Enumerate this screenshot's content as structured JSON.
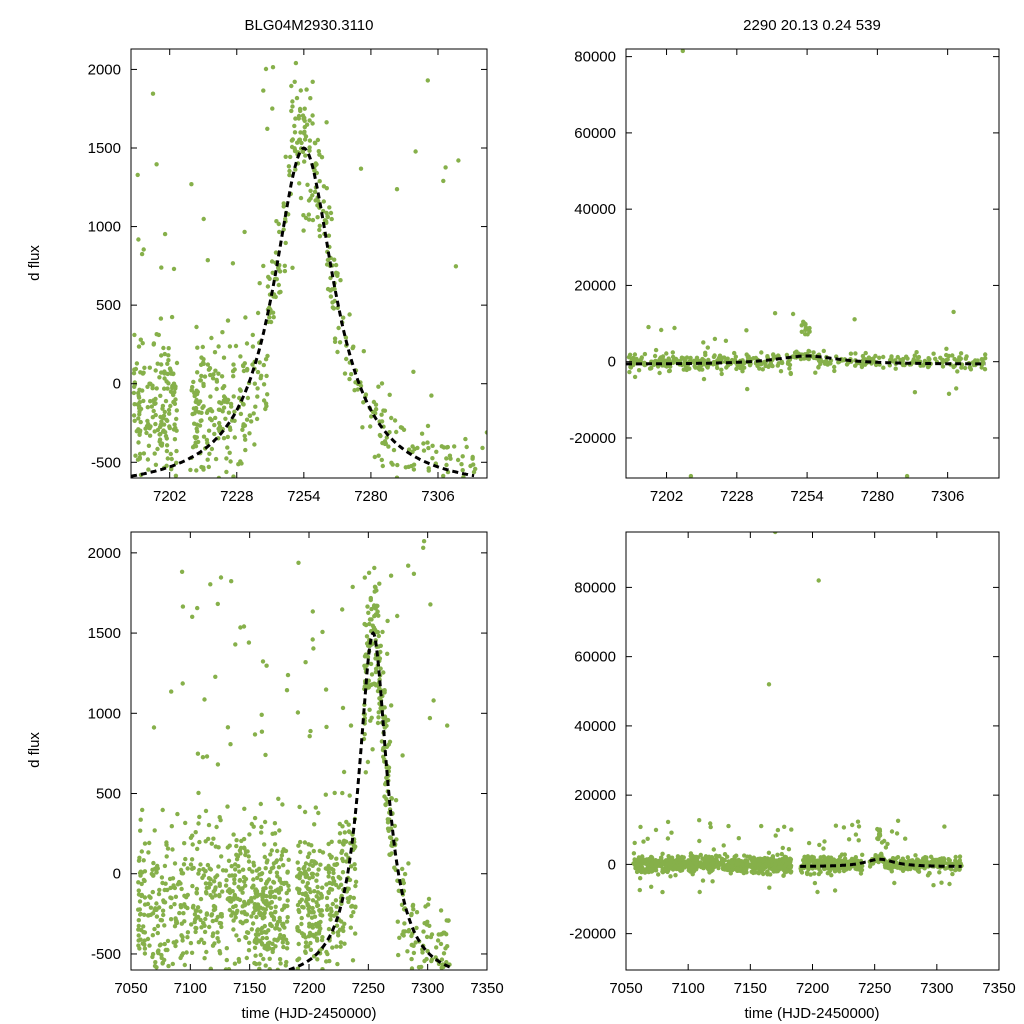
{
  "figure": {
    "title_left": "BLG04M2930.3110",
    "title_right": "2290  20.13  0.24  539",
    "ylabel": "d flux",
    "xlabel": "time (HJD-2450000)",
    "point_color": "#86b04a",
    "model_color": "#000000"
  },
  "chart_data": [
    {
      "panel": "top-left",
      "type": "scatter",
      "title": "BLG04M2930.3110",
      "ylabel": "d flux",
      "xlabel": "",
      "xlim": [
        7187,
        7325
      ],
      "ylim": [
        -600,
        2130
      ],
      "xticks": [
        7202,
        7228,
        7254,
        7280,
        7306
      ],
      "yticks": [
        -500,
        0,
        500,
        1000,
        1500,
        2000
      ],
      "series": [
        {
          "name": "observations",
          "style": "points",
          "seasons": [
            [
              7188,
              7196
            ],
            [
              7196,
              7205
            ],
            [
              7210,
              7222
            ],
            [
              7222,
              7245
            ],
            [
              7246,
              7268
            ],
            [
              7268,
              7325
            ]
          ]
        },
        {
          "name": "model",
          "style": "dashed-line",
          "peak_time": 7254,
          "peak_flux": 1500,
          "baseline": -680,
          "width_days": 14
        }
      ]
    },
    {
      "panel": "top-right",
      "type": "scatter",
      "title": "2290  20.13  0.24  539",
      "ylabel": "",
      "xlabel": "",
      "xlim": [
        7187,
        7325
      ],
      "ylim": [
        -30500,
        82000
      ],
      "xticks": [
        7202,
        7228,
        7254,
        7280,
        7306
      ],
      "yticks": [
        -20000,
        0,
        20000,
        40000,
        60000,
        80000
      ],
      "series": [
        {
          "name": "observations",
          "style": "points"
        },
        {
          "name": "model",
          "style": "dashed-line",
          "peak_time": 7254,
          "peak_flux": 1500,
          "baseline": -680,
          "width_days": 14
        }
      ]
    },
    {
      "panel": "bottom-left",
      "type": "scatter",
      "title": "",
      "ylabel": "d flux",
      "xlabel": "time (HJD-2450000)",
      "xlim": [
        7050,
        7350
      ],
      "ylim": [
        -600,
        2130
      ],
      "xticks": [
        7050,
        7100,
        7150,
        7200,
        7250,
        7300,
        7350
      ],
      "yticks": [
        -500,
        0,
        500,
        1000,
        1500,
        2000
      ],
      "series": [
        {
          "name": "observations",
          "style": "points"
        },
        {
          "name": "model",
          "style": "dashed-line",
          "peak_time": 7254,
          "peak_flux": 1500,
          "baseline": -680,
          "width_days": 14
        }
      ]
    },
    {
      "panel": "bottom-right",
      "type": "scatter",
      "title": "",
      "ylabel": "",
      "xlabel": "time (HJD-2450000)",
      "xlim": [
        7050,
        7350
      ],
      "ylim": [
        -30500,
        96000
      ],
      "xticks": [
        7050,
        7100,
        7150,
        7200,
        7250,
        7300,
        7350
      ],
      "yticks": [
        -20000,
        0,
        20000,
        40000,
        60000,
        80000
      ],
      "series": [
        {
          "name": "observations",
          "style": "points"
        },
        {
          "name": "model",
          "style": "dashed-line",
          "peak_time": 7254,
          "peak_flux": 1500,
          "baseline": -680,
          "width_days": 14
        }
      ]
    }
  ]
}
